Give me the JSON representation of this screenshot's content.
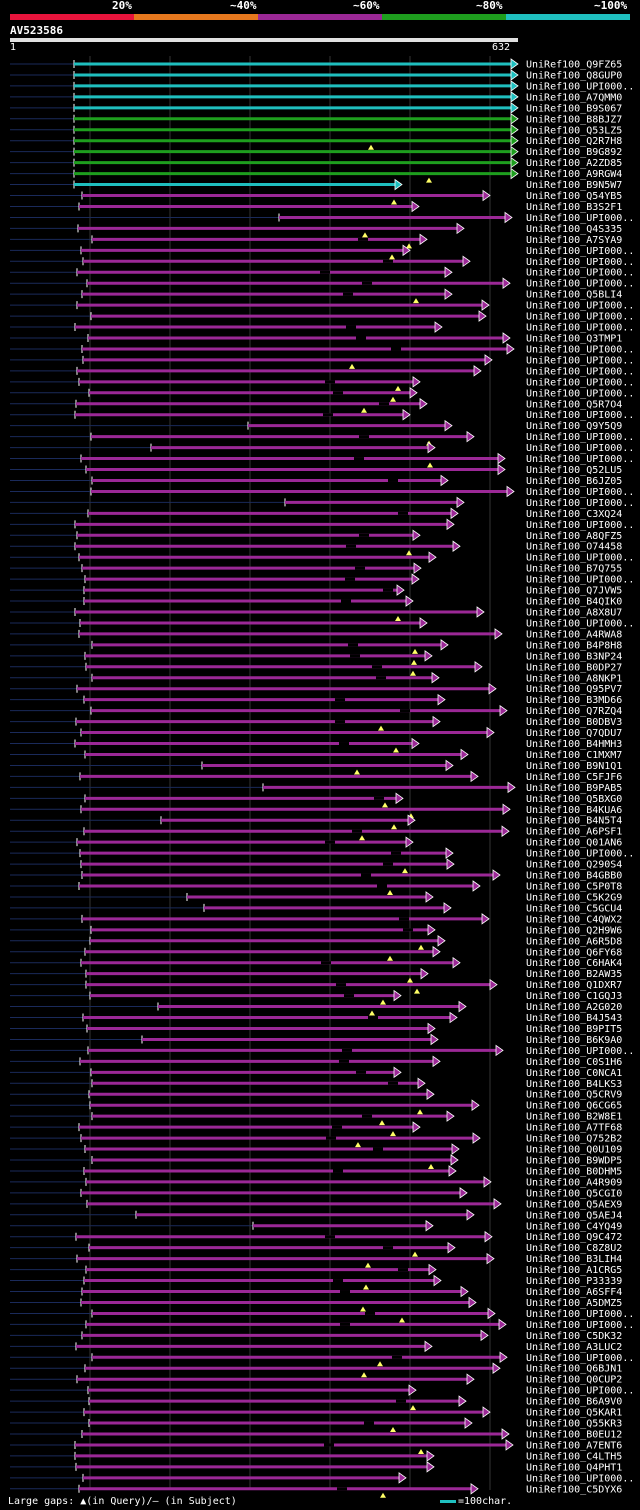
{
  "legend": {
    "labels": [
      "20%",
      "~40%",
      "~60%",
      "~80%",
      "~100%"
    ],
    "colors": [
      "#e8143c",
      "#e6781e",
      "#9b2896",
      "#1e9e1e",
      "#1fbfbf"
    ]
  },
  "query": {
    "name": "AV523586",
    "start": "1",
    "end": "632"
  },
  "hits": [
    "UniRef100_Q9FZ65",
    "UniRef100_Q8GUP0",
    "UniRef100_UPI000..",
    "UniRef100_A7QMM0",
    "UniRef100_B9S067",
    "UniRef100_B8BJZ7",
    "UniRef100_Q53LZ5",
    "UniRef100_Q2R7H8",
    "UniRef100_B9G892",
    "UniRef100_A2ZD85",
    "UniRef100_A9RGW4",
    "UniRef100_B9N5W7",
    "UniRef100_Q54YB5",
    "UniRef100_B3S2F1",
    "UniRef100_UPI000..",
    "UniRef100_Q4S335",
    "UniRef100_A7SYA9",
    "UniRef100_UPI000..",
    "UniRef100_UPI000..",
    "UniRef100_UPI000..",
    "UniRef100_UPI000..",
    "UniRef100_Q5BLI4",
    "UniRef100_UPI000..",
    "UniRef100_UPI000..",
    "UniRef100_UPI000..",
    "UniRef100_Q3TMP1",
    "UniRef100_UPI000..",
    "UniRef100_UPI000..",
    "UniRef100_UPI000..",
    "UniRef100_UPI000..",
    "UniRef100_UPI000..",
    "UniRef100_Q5R7O4",
    "UniRef100_UPI000..",
    "UniRef100_Q9Y5Q9",
    "UniRef100_UPI000..",
    "UniRef100_UPI000..",
    "UniRef100_UPI000..",
    "UniRef100_Q52LU5",
    "UniRef100_B6JZ05",
    "UniRef100_UPI000..",
    "UniRef100_UPI000..",
    "UniRef100_C3XQ24",
    "UniRef100_UPI000..",
    "UniRef100_A8QFZ5",
    "UniRef100_O74458",
    "UniRef100_UPI000..",
    "UniRef100_B7Q755",
    "UniRef100_UPI000..",
    "UniRef100_Q7JVW5",
    "UniRef100_B4QIK0",
    "UniRef100_A8X8U7",
    "UniRef100_UPI000..",
    "UniRef100_A4RWA8",
    "UniRef100_B4P8H8",
    "UniRef100_B3NP24",
    "UniRef100_B0DP27",
    "UniRef100_A8NKP1",
    "UniRef100_Q95PV7",
    "UniRef100_B3MD66",
    "UniRef100_Q7RZQ4",
    "UniRef100_B0DBV3",
    "UniRef100_Q7QDU7",
    "UniRef100_B4HMH3",
    "UniRef100_C1MXM7",
    "UniRef100_B9N1Q1",
    "UniRef100_C5FJF6",
    "UniRef100_B9PAB5",
    "UniRef100_Q5BXG0",
    "UniRef100_B4KUA6",
    "UniRef100_B4N5T4",
    "UniRef100_A6PSF1",
    "UniRef100_Q01AN6",
    "UniRef100_UPI000..",
    "UniRef100_Q290S4",
    "UniRef100_B4GBB0",
    "UniRef100_C5P0T8",
    "UniRef100_C5K2G9",
    "UniRef100_C5GCU4",
    "UniRef100_C4QWX2",
    "UniRef100_Q2H9W6",
    "UniRef100_A6R5D8",
    "UniRef100_Q6FY68",
    "UniRef100_C6HAK4",
    "UniRef100_B2AW35",
    "UniRef100_Q1DXR7",
    "UniRef100_C1GQJ3",
    "UniRef100_A2G020",
    "UniRef100_B4J543",
    "UniRef100_B9PIT5",
    "UniRef100_B6K9A0",
    "UniRef100_UPI000..",
    "UniRef100_C0S1H6",
    "UniRef100_C0NCA1",
    "UniRef100_B4LKS3",
    "UniRef100_Q5CRV9",
    "UniRef100_Q6CG65",
    "UniRef100_B2W8E1",
    "UniRef100_A7TF68",
    "UniRef100_Q752B2",
    "UniRef100_Q0U109",
    "UniRef100_B9WDP5",
    "UniRef100_B0DHM5",
    "UniRef100_A4R909",
    "UniRef100_Q5CGI0",
    "UniRef100_Q5AEX9",
    "UniRef100_Q5AEJ4",
    "UniRef100_C4YQ49",
    "UniRef100_Q9C472",
    "UniRef100_C8Z8U2",
    "UniRef100_B3LIH4",
    "UniRef100_A1CRG5",
    "UniRef100_P33339",
    "UniRef100_A6SFF4",
    "UniRef100_A5DMZ5",
    "UniRef100_UPI000..",
    "UniRef100_UPI000..",
    "UniRef100_C5DK32",
    "UniRef100_A3LUC2",
    "UniRef100_UPI000..",
    "UniRef100_Q6BJN1",
    "UniRef100_Q0CUP2",
    "UniRef100_UPI000..",
    "UniRef100_B6A9V0",
    "UniRef100_Q5KAR1",
    "UniRef100_Q55KR3",
    "UniRef100_B0EU12",
    "UniRef100_A7ENT6",
    "UniRef100_C4LTH5",
    "UniRef100_Q4PHT1",
    "UniRef100_UPI000..",
    "UniRef100_C5DYX6"
  ],
  "footer": {
    "gaps_label": "Large gaps:",
    "gaps_query": "▲(in Query)/– (in Subject)",
    "scale_label": "=100char."
  }
}
